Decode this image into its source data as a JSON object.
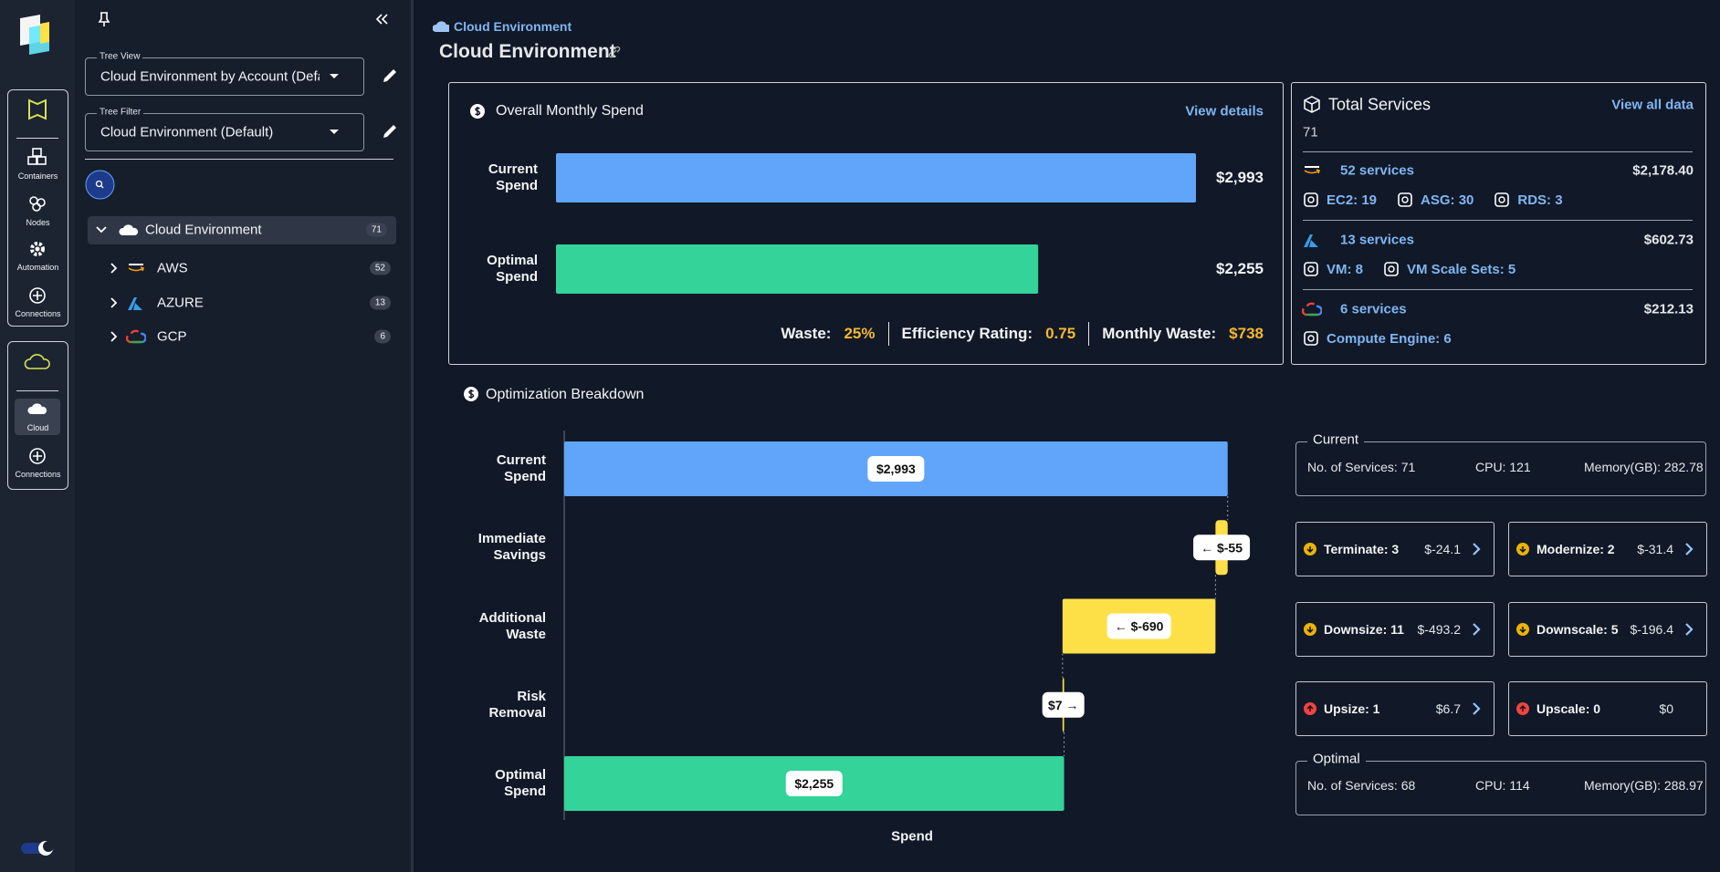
{
  "rail": {
    "items": [
      "Containers",
      "Nodes",
      "Automation",
      "Connections"
    ],
    "cloud_items": [
      "Cloud",
      "Connections"
    ]
  },
  "tree_panel": {
    "tree_view": {
      "label": "Tree View",
      "value": "Cloud Environment by Account (Default"
    },
    "tree_filter": {
      "label": "Tree Filter",
      "value": "Cloud Environment (Default)"
    },
    "root": {
      "label": "Cloud Environment",
      "count": 71
    },
    "children": [
      {
        "label": "AWS",
        "count": 52
      },
      {
        "label": "AZURE",
        "count": 13
      },
      {
        "label": "GCP",
        "count": 6
      }
    ]
  },
  "header": {
    "breadcrumb": "Cloud Environment",
    "title": "Cloud Environment"
  },
  "chart_data": [
    {
      "type": "hbar",
      "title": "Overall Monthly Spend",
      "link": "View details",
      "categories": [
        "Current Spend",
        "Optimal Spend"
      ],
      "values": [
        2993,
        2255
      ],
      "value_labels": [
        "$2,993",
        "$2,255"
      ],
      "colors": [
        "#60a5fa",
        "#34d399"
      ],
      "xlim": [
        0,
        2993
      ]
    },
    {
      "type": "waterfall",
      "title": "Optimization Breakdown",
      "x_label": "Spend",
      "categories": [
        "Current Spend",
        "Immediate Savings",
        "Additional Waste",
        "Risk Removal",
        "Optimal Spend"
      ],
      "values": [
        2993,
        -55,
        -690,
        7,
        2255
      ],
      "value_labels": [
        "$2,993",
        "← $-55",
        "← $-690",
        "$7 →",
        "$2,255"
      ],
      "colors": [
        "#60a5fa",
        "#fde047",
        "#fde047",
        "#fde047",
        "#34d399"
      ],
      "xlim": [
        0,
        3200
      ]
    }
  ],
  "spend_summary": [
    {
      "label": "Waste:",
      "value": "25%"
    },
    {
      "label": "Efficiency Rating:",
      "value": "0.75"
    },
    {
      "label": "Monthly Waste:",
      "value": "$738"
    }
  ],
  "services": {
    "title": "Total Services",
    "link": "View all data",
    "total": 71,
    "providers": [
      {
        "services": "52 services",
        "cost": "$2,178.40",
        "items": [
          "EC2: 19",
          "ASG: 30",
          "RDS: 3"
        ]
      },
      {
        "services": "13 services",
        "cost": "$602.73",
        "items": [
          "VM: 8",
          "VM Scale Sets: 5"
        ]
      },
      {
        "services": "6 services",
        "cost": "$212.13",
        "items": [
          "Compute Engine: 6"
        ]
      }
    ]
  },
  "breakdown_panel": {
    "current": {
      "legend": "Current",
      "stats": [
        "No. of Services: 71",
        "CPU: 121",
        "Memory(GB): 282.78"
      ]
    },
    "actions": [
      {
        "label": "Terminate: 3",
        "value": "$-24.1",
        "direction": "down",
        "actionable": true
      },
      {
        "label": "Modernize: 2",
        "value": "$-31.4",
        "direction": "down",
        "actionable": true
      },
      {
        "label": "Downsize: 11",
        "value": "$-493.2",
        "direction": "down",
        "actionable": true
      },
      {
        "label": "Downscale: 5",
        "value": "$-196.4",
        "direction": "down",
        "actionable": true
      },
      {
        "label": "Upsize: 1",
        "value": "$6.7",
        "direction": "up",
        "actionable": true
      },
      {
        "label": "Upscale: 0",
        "value": "$0",
        "direction": "up",
        "actionable": false
      }
    ],
    "optimal": {
      "legend": "Optimal",
      "stats": [
        "No. of Services: 68",
        "CPU: 114",
        "Memory(GB): 288.97"
      ]
    }
  }
}
